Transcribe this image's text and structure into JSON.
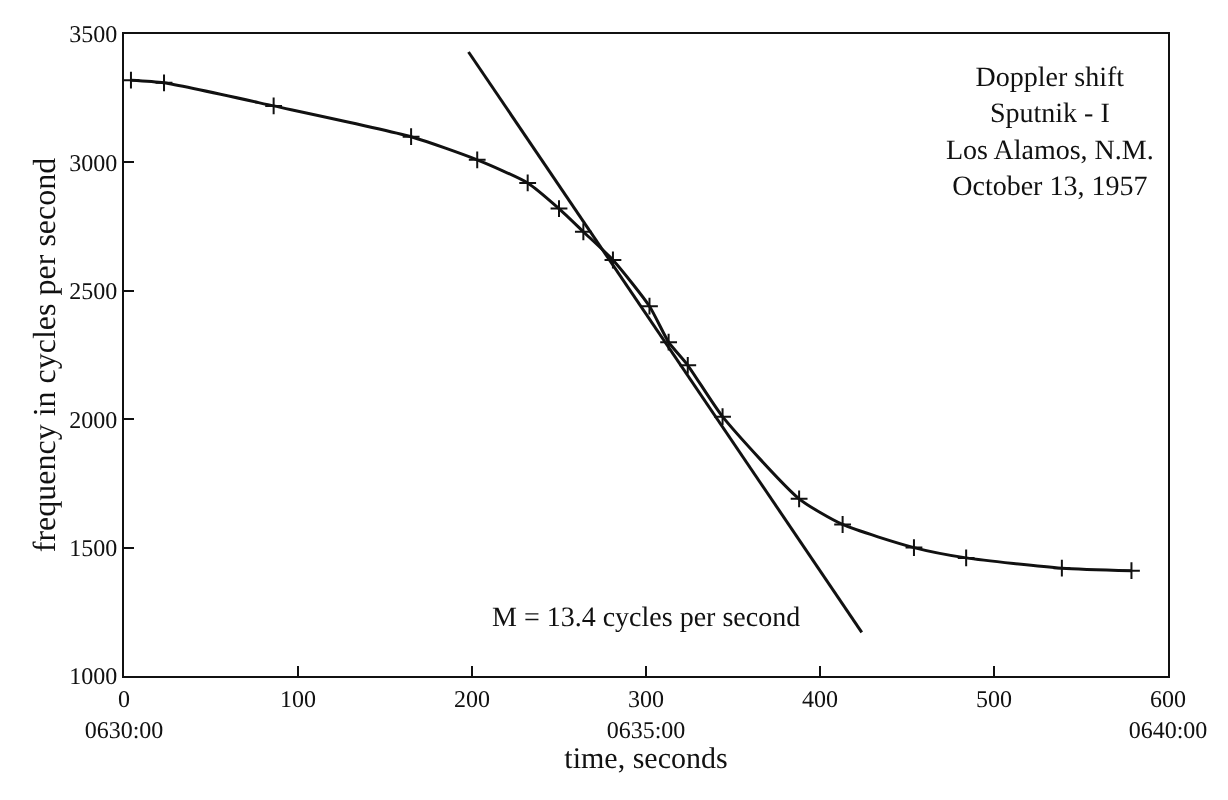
{
  "chart_data": {
    "type": "line",
    "xlabel": "time, seconds",
    "ylabel": "frequency in cycles per second",
    "xlim": [
      0,
      600
    ],
    "ylim": [
      1000,
      3500
    ],
    "xticks": [
      {
        "value": 0,
        "label": "0\n0630:00"
      },
      100,
      200,
      {
        "value": 300,
        "label": "300\n0635:00"
      },
      400,
      500,
      {
        "value": 600,
        "label": "600\n0640:00"
      }
    ],
    "yticks": [
      1000,
      1500,
      2000,
      2500,
      3000,
      3500
    ],
    "series": [
      {
        "color": "#111111",
        "marker": "cross",
        "x": [
          4,
          23,
          86,
          165,
          203,
          232,
          250,
          264,
          281,
          302,
          313,
          324,
          344,
          388,
          413,
          454,
          484,
          539,
          579
        ],
        "values": [
          3320,
          3310,
          3220,
          3100,
          3010,
          2920,
          2820,
          2730,
          2620,
          2440,
          2300,
          2210,
          2010,
          1690,
          1590,
          1500,
          1460,
          1420,
          1410
        ]
      },
      {
        "color": "#111111",
        "marker": "none",
        "x": [
          198,
          424
        ],
        "values": [
          3430,
          1170
        ]
      }
    ],
    "annotations": [
      "Doppler shift\nSputnik - I\nLos Alamos, N.M.\nOctober 13, 1957",
      "M = 13.4 cycles per second"
    ]
  }
}
